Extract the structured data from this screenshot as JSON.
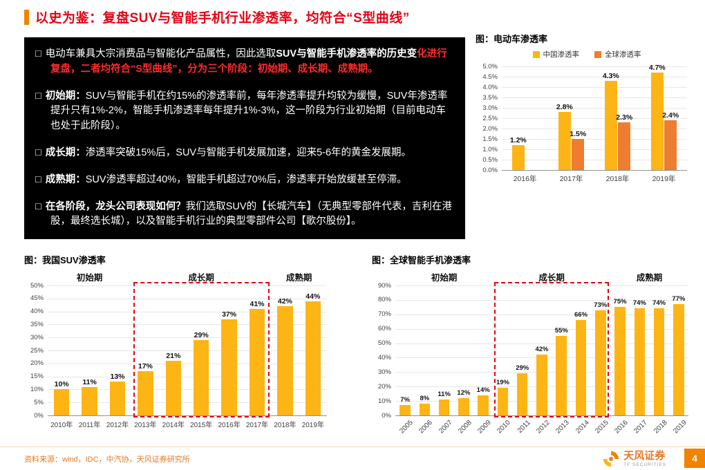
{
  "colors": {
    "title_red": "#E60012",
    "accent_orange": "#F08300",
    "bar_yellow": "#FDB515",
    "bar_orange": "#ED7D31",
    "highlight_red": "#E60012",
    "panel_bg": "#000000",
    "panel_red_text": "#ff2b2b"
  },
  "header": {
    "title": "以史为鉴：复盘SUV与智能手机行业渗透率，均符合“S型曲线”"
  },
  "panel": {
    "marker": "□",
    "bullets": [
      {
        "segments": [
          {
            "style": "n",
            "text": "电动车兼具大宗消费品与智能化产品属性，因此选取"
          },
          {
            "style": "b",
            "text": "SUV与智能手机渗透率的历史变"
          },
          {
            "style": "r",
            "text": "化进行复盘，二者均符合“S型曲线”，分为三个阶段：初始期、成长期、成熟期。"
          }
        ]
      },
      {
        "segments": [
          {
            "style": "b",
            "text": "初始期："
          },
          {
            "style": "n",
            "text": "SUV与智能手机在约15%的渗透率前，每年渗透率提升均较为缓慢，SUV年渗透率提升只有1%-2%，智能手机渗透率每年提升1%-3%，这一阶段为行业初始期（目前电动车也处于此阶段）。"
          }
        ]
      },
      {
        "segments": [
          {
            "style": "b",
            "text": "成长期："
          },
          {
            "style": "n",
            "text": "渗透率突破15%后，SUV与智能手机发展加速，迎来5-6年的黄金发展期。"
          }
        ]
      },
      {
        "segments": [
          {
            "style": "b",
            "text": "成熟期："
          },
          {
            "style": "n",
            "text": "SUV渗透率超过40%，智能手机超过70%后，渗透率开始放缓甚至停滞。"
          }
        ]
      },
      {
        "segments": [
          {
            "style": "b",
            "text": "在各阶段，龙头公司表现如何？"
          },
          {
            "style": "n",
            "text": "我们选取SUV的【长城汽车】（无典型零部件代表，吉利在港股，最终选长城），以及智能手机行业的典型零部件公司【歌尔股份】。"
          }
        ]
      }
    ]
  },
  "chart_data": [
    {
      "id": "ev",
      "type": "bar",
      "title": "图：电动车渗透率",
      "categories": [
        "2016年",
        "2017年",
        "2018年",
        "2019年"
      ],
      "series": [
        {
          "name": "中国渗透率",
          "color": "#FDB515",
          "values": [
            1.2,
            2.8,
            4.3,
            4.7
          ]
        },
        {
          "name": "全球渗透率",
          "color": "#ED7D31",
          "values": [
            null,
            1.5,
            2.3,
            2.4
          ]
        }
      ],
      "ylim": [
        0,
        5
      ],
      "ystep": 0.5,
      "tick_format": "1dp",
      "label_format": "1dp",
      "grid": true,
      "legend_position": "top"
    },
    {
      "id": "suv",
      "type": "bar",
      "title": "图：我国SUV渗透率",
      "categories": [
        "2010年",
        "2011年",
        "2012年",
        "2013年",
        "2014年",
        "2015年",
        "2016年",
        "2017年",
        "2018年",
        "2019年"
      ],
      "values": [
        10,
        11,
        13,
        17,
        21,
        29,
        37,
        41,
        42,
        44
      ],
      "bar_color": "#FDB515",
      "ylim": [
        0,
        50
      ],
      "ystep": 5,
      "tick_format": "int",
      "label_format": "int",
      "grid": true,
      "phases": [
        {
          "label": "初始期",
          "from": 0,
          "to": 2
        },
        {
          "label": "成长期",
          "from": 3,
          "to": 7
        },
        {
          "label": "成熟期",
          "from": 8,
          "to": 9
        }
      ],
      "highlight_box": {
        "from": 3,
        "to": 7,
        "color": "#E60012"
      }
    },
    {
      "id": "phone",
      "type": "bar",
      "title": "图：全球智能手机渗透率",
      "categories": [
        "2005",
        "2006",
        "2007",
        "2008",
        "2009",
        "2010",
        "2011",
        "2012",
        "2013",
        "2014",
        "2015",
        "2016",
        "2017",
        "2018",
        "2019"
      ],
      "values": [
        7,
        8,
        11,
        12,
        14,
        19,
        29,
        42,
        55,
        66,
        73,
        75,
        74,
        74,
        77
      ],
      "bar_color": "#FDB515",
      "ylim": [
        0,
        90
      ],
      "ystep": 10,
      "tick_format": "int",
      "label_format": "int",
      "grid": true,
      "phases": [
        {
          "label": "初始期",
          "from": 0,
          "to": 4
        },
        {
          "label": "成长期",
          "from": 5,
          "to": 10
        },
        {
          "label": "成熟期",
          "from": 11,
          "to": 14
        }
      ],
      "highlight_box": {
        "from": 5,
        "to": 10,
        "color": "#E60012"
      }
    }
  ],
  "footer": {
    "source": "资料来源：wind，IDC，中汽协，天风证券研究所",
    "logo_name": "天风证券",
    "logo_sub": "TF SECURITIES",
    "page_number": "4"
  }
}
